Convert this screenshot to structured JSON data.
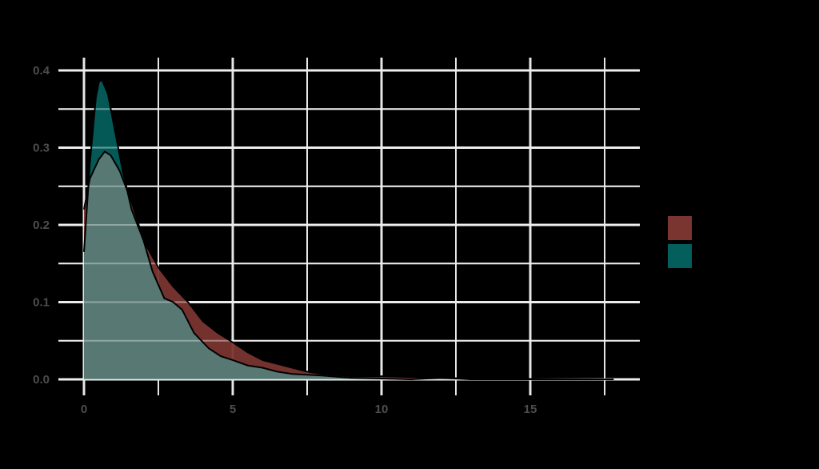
{
  "chart_data": {
    "type": "area",
    "subtype": "density",
    "title": "",
    "xlabel": "",
    "ylabel": "",
    "xlim": [
      0,
      17.8
    ],
    "ylim": [
      0,
      0.4
    ],
    "grid": true,
    "legend_position": "right",
    "x_ticks": [
      "0",
      "5",
      "10",
      "15"
    ],
    "y_ticks": [
      "0.0",
      "0.1",
      "0.2",
      "0.3",
      "0.4"
    ],
    "colors": {
      "background": "#000000",
      "grid": "#e6e6e6",
      "tick_text": "#4d4d4d",
      "series_a": "#7a3530",
      "series_b": "#045e5c",
      "overlap": "#577873"
    },
    "series": [
      {
        "name": "",
        "color": "#7a3530",
        "x": [
          0,
          0.2,
          0.5,
          0.7,
          0.9,
          1.2,
          1.6,
          2.0,
          2.5,
          3.0,
          3.5,
          4.0,
          4.5,
          5.0,
          5.5,
          6.0,
          6.5,
          7.0,
          7.5,
          8.0,
          9.0,
          10.0,
          11.0,
          12.0,
          13.0,
          15.0,
          17.8
        ],
        "y": [
          0.22,
          0.26,
          0.285,
          0.295,
          0.29,
          0.27,
          0.23,
          0.18,
          0.145,
          0.12,
          0.1,
          0.075,
          0.06,
          0.048,
          0.035,
          0.025,
          0.02,
          0.015,
          0.01,
          0.007,
          0.004,
          0.004,
          0.003,
          0.002,
          0.001,
          0.0005,
          0.0
        ]
      },
      {
        "name": "",
        "color": "#045e5c",
        "x": [
          0,
          0.2,
          0.4,
          0.5,
          0.6,
          0.8,
          1.0,
          1.3,
          1.6,
          2.0,
          2.3,
          2.7,
          3.0,
          3.3,
          3.7,
          4.2,
          4.6,
          5.0,
          5.5,
          6.0,
          6.5,
          7.0,
          7.5,
          8.0,
          9.0,
          10.0,
          11.0,
          12.0,
          13.0,
          15.0,
          17.8
        ],
        "y": [
          0.165,
          0.28,
          0.365,
          0.385,
          0.388,
          0.37,
          0.33,
          0.27,
          0.22,
          0.18,
          0.14,
          0.105,
          0.1,
          0.09,
          0.06,
          0.04,
          0.03,
          0.025,
          0.018,
          0.015,
          0.01,
          0.007,
          0.006,
          0.005,
          0.002,
          0.001,
          0.0,
          0.002,
          0.0,
          0.0,
          0.0
        ]
      }
    ]
  },
  "legend": {
    "items": [
      {
        "label": "",
        "color": "#7a3530"
      },
      {
        "label": "",
        "color": "#045e5c"
      }
    ]
  }
}
